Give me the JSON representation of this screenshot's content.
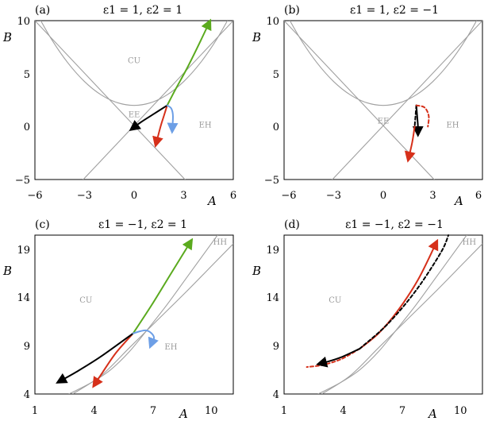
{
  "chart_data": [
    {
      "panel": "(a)",
      "title": "ε1 = 1, ε2 = 1",
      "type": "line",
      "xlabel": "A",
      "ylabel": "B",
      "xlim": [
        -6,
        6
      ],
      "ylim": [
        -5,
        10
      ],
      "xticks": [
        "−6",
        "−3",
        "0",
        "3",
        "6"
      ],
      "yticks": [
        "−5",
        "0",
        "5",
        "10"
      ],
      "region_labels": [
        {
          "text": "CU",
          "x": 0,
          "y": 6
        },
        {
          "text": "EE",
          "x": 0,
          "y": 0.9
        },
        {
          "text": "EH",
          "x": 4.3,
          "y": -0.1
        }
      ],
      "boundaries": {
        "parabola": {
          "x": [
            -6,
            -5,
            -4,
            -3,
            -2,
            -1,
            0,
            1,
            2,
            3,
            4,
            5,
            6
          ],
          "y": [
            11,
            8.25,
            6,
            4.25,
            3,
            2.25,
            2,
            2.25,
            3,
            4.25,
            6,
            8.25,
            11
          ]
        },
        "line_pos": {
          "x": [
            -3.2,
            6
          ],
          "y": [
            -5.2,
            10
          ]
        },
        "line_neg": {
          "x": [
            -6,
            3.2
          ],
          "y": [
            10,
            -5.2
          ]
        }
      },
      "series": [
        {
          "color": "#5aaa1e",
          "style": "solid",
          "x": [
            2,
            2.5,
            3.2,
            3.9,
            4.6
          ],
          "y": [
            2,
            3.5,
            5.5,
            7.7,
            10
          ]
        },
        {
          "color": "#d6301a",
          "style": "solid",
          "x": [
            2,
            1.8,
            1.6,
            1.3
          ],
          "y": [
            2,
            1,
            0,
            -1.8
          ]
        },
        {
          "color": "#000000",
          "style": "solid",
          "x": [
            2,
            1.2,
            0.4,
            -0.2
          ],
          "y": [
            2,
            1.2,
            0.4,
            -0.3
          ]
        },
        {
          "color": "#6d9fe6",
          "style": "solid",
          "x": [
            2,
            2.25,
            2.35,
            2.3
          ],
          "y": [
            2,
            1.7,
            1,
            -0.5
          ]
        }
      ]
    },
    {
      "panel": "(b)",
      "title": "ε1 = 1, ε2 = −1",
      "type": "line",
      "xlabel": "A",
      "ylabel": "B",
      "xlim": [
        -6,
        6
      ],
      "ylim": [
        -5,
        10
      ],
      "xticks": [
        "−6",
        "−3",
        "0",
        "3",
        "6"
      ],
      "yticks": [
        "−5",
        "0",
        "5",
        "10"
      ],
      "region_labels": [
        {
          "text": "EE",
          "x": 0,
          "y": 0.3
        },
        {
          "text": "EH",
          "x": 4.2,
          "y": -0.1
        }
      ],
      "boundaries": {
        "parabola": {
          "x": [
            -6,
            -5,
            -4,
            -3,
            -2,
            -1,
            0,
            1,
            2,
            3,
            4,
            5,
            6
          ],
          "y": [
            11,
            8.25,
            6,
            4.25,
            3,
            2.25,
            2,
            2.25,
            3,
            4.25,
            6,
            8.25,
            11
          ]
        },
        "line_pos": {
          "x": [
            -3.2,
            6
          ],
          "y": [
            -5.2,
            10
          ]
        },
        "line_neg": {
          "x": [
            -6,
            3.2
          ],
          "y": [
            10,
            -5.2
          ]
        }
      },
      "series": [
        {
          "color": "#000000",
          "style": "solid",
          "x": [
            2,
            2.05,
            2.1,
            2.1
          ],
          "y": [
            2,
            1,
            0,
            -0.8
          ]
        },
        {
          "color": "#000000",
          "style": "dashed",
          "x": [
            2,
            1.95,
            1.9
          ],
          "y": [
            2,
            1,
            0
          ]
        },
        {
          "color": "#d6301a",
          "style": "solid",
          "x": [
            1.9,
            1.75,
            1.5
          ],
          "y": [
            0,
            -1.5,
            -3.2
          ]
        },
        {
          "color": "#d6301a",
          "style": "dashed",
          "x": [
            2,
            2.5,
            2.75,
            2.7
          ],
          "y": [
            2,
            1.8,
            1,
            0
          ]
        }
      ]
    },
    {
      "panel": "(c)",
      "title": "ε1 = −1, ε2 = 1",
      "type": "line",
      "xlabel": "A",
      "ylabel": "B",
      "xlim": [
        1,
        11.5
      ],
      "ylim": [
        4,
        20.5
      ],
      "xticks": [
        "1",
        "4",
        "7",
        "10"
      ],
      "yticks": [
        "4",
        "9",
        "14",
        "19"
      ],
      "region_labels": [
        {
          "text": "CU",
          "x": 3.7,
          "y": 13.5
        },
        {
          "text": "EH",
          "x": 8.2,
          "y": 8.6
        },
        {
          "text": "HH",
          "x": 10.8,
          "y": 19.5
        }
      ],
      "boundaries": {
        "curve_upper": {
          "x": [
            2.8,
            4,
            5,
            6,
            7,
            8,
            9,
            10,
            11
          ],
          "y": [
            4,
            5.2,
            6.5,
            8.4,
            10.8,
            13.3,
            16,
            18.7,
            21.4
          ]
        },
        "curve_lower": {
          "x": [
            3,
            4.5,
            6,
            7.5,
            9,
            10.5,
            11.5
          ],
          "y": [
            4,
            5.9,
            8.8,
            11.7,
            14.6,
            17.6,
            19.6
          ]
        }
      },
      "series": [
        {
          "color": "#5aaa1e",
          "style": "solid",
          "x": [
            6.2,
            7.2,
            8.2,
            9.3
          ],
          "y": [
            10.3,
            13.3,
            16.5,
            20
          ]
        },
        {
          "color": "#d6301a",
          "style": "solid",
          "x": [
            6.2,
            5.3,
            4.6,
            4.1
          ],
          "y": [
            10.3,
            8.3,
            6.3,
            4.8
          ]
        },
        {
          "color": "#000000",
          "style": "solid",
          "x": [
            6.2,
            4.5,
            3.2,
            2.2
          ],
          "y": [
            10.3,
            7.9,
            6.3,
            5.2
          ]
        },
        {
          "color": "#6d9fe6",
          "style": "solid",
          "x": [
            6.2,
            6.9,
            7.3,
            7.1
          ],
          "y": [
            10.3,
            10.6,
            9.9,
            8.9
          ]
        }
      ]
    },
    {
      "panel": "(d)",
      "title": "ε1 = −1, ε2 = −1",
      "type": "line",
      "xlabel": "A",
      "ylabel": "B",
      "xlim": [
        1,
        11.5
      ],
      "ylim": [
        4,
        20.5
      ],
      "xticks": [
        "1",
        "4",
        "7",
        "10"
      ],
      "yticks": [
        "4",
        "9",
        "14",
        "19"
      ],
      "region_labels": [
        {
          "text": "CU",
          "x": 3.7,
          "y": 13.5
        },
        {
          "text": "HH",
          "x": 10.8,
          "y": 19.5
        }
      ],
      "boundaries": {
        "curve_upper": {
          "x": [
            2.8,
            4,
            5,
            6,
            7,
            8,
            9,
            10,
            11
          ],
          "y": [
            4,
            5.2,
            6.5,
            8.4,
            10.8,
            13.3,
            16,
            18.7,
            21.4
          ]
        },
        "curve_lower": {
          "x": [
            3,
            4.5,
            6,
            7.5,
            9,
            10.5,
            11.5
          ],
          "y": [
            4,
            5.9,
            8.8,
            11.7,
            14.6,
            17.6,
            19.6
          ]
        }
      },
      "series": [
        {
          "color": "#d6301a",
          "style": "solid",
          "x": [
            5,
            6,
            7,
            8.1,
            9.1
          ],
          "y": [
            8.7,
            10.3,
            12.6,
            15.9,
            19.9
          ]
        },
        {
          "color": "#d6301a",
          "style": "dashed",
          "x": [
            5,
            4,
            3,
            2.2
          ],
          "y": [
            8.7,
            7.6,
            7,
            6.8
          ]
        },
        {
          "color": "#000000",
          "style": "dashed",
          "x": [
            5,
            6.5,
            8,
            9.3,
            9.7
          ],
          "y": [
            8.7,
            11.3,
            14.8,
            18.7,
            20.5
          ]
        },
        {
          "color": "#000000",
          "style": "solid",
          "x": [
            5,
            4,
            3.2,
            2.8
          ],
          "y": [
            8.7,
            7.8,
            7.3,
            7.1
          ]
        }
      ]
    }
  ]
}
